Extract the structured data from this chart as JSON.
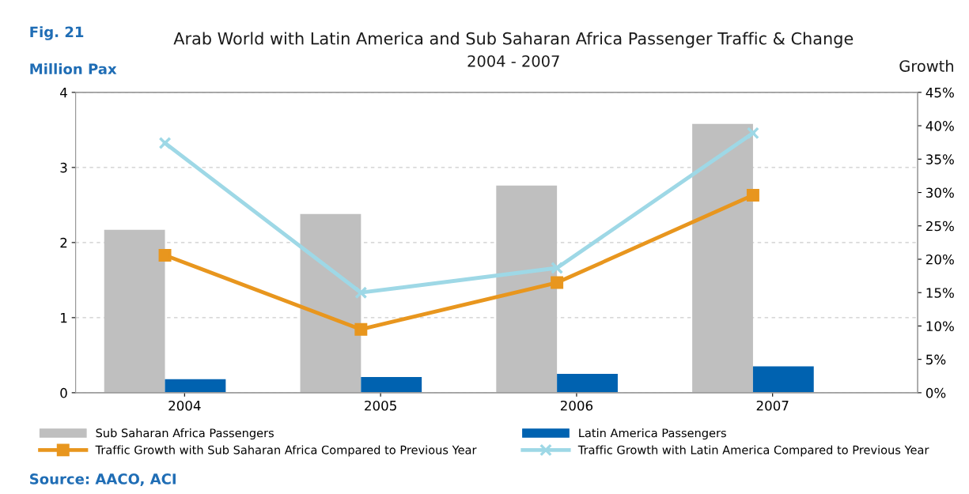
{
  "chart_data": {
    "type": "bar",
    "title": "Arab World with Latin America and Sub Saharan Africa Passenger Traffic & Change",
    "subtitle": "2004 - 2007",
    "ylabel": "Million Pax",
    "y2label": "Growth",
    "categories": [
      "2004",
      "2005",
      "2006",
      "2007"
    ],
    "series": [
      {
        "name": "Sub Saharan Africa Passengers",
        "color": "#bfbfbf",
        "values": [
          2.17,
          2.38,
          2.76,
          3.58
        ]
      },
      {
        "name": "Latin America Passengers",
        "color": "#0062b0",
        "values": [
          0.18,
          0.21,
          0.25,
          0.35
        ]
      },
      {
        "name": "Traffic Growth with Sub Saharan Africa Compared to Previous Year",
        "type": "line",
        "axis": "y2",
        "marker": "square",
        "color": "#e8961e",
        "values": [
          20.6,
          9.5,
          16.5,
          29.6
        ]
      },
      {
        "name": "Traffic Growth with Latin America Compared to Previous Year",
        "type": "line",
        "axis": "y2",
        "marker": "cross",
        "color": "#9ed8e6",
        "values": [
          37.4,
          15.0,
          18.7,
          38.9
        ]
      }
    ],
    "ylim": [
      0,
      4
    ],
    "yticks": [
      0,
      1,
      2,
      3,
      4
    ],
    "y2lim": [
      0,
      45
    ],
    "y2ticks": [
      {
        "value": 0,
        "label": "0%"
      },
      {
        "value": 5,
        "label": "5%"
      },
      {
        "value": 10,
        "label": "10%"
      },
      {
        "value": 15,
        "label": "15%"
      },
      {
        "value": 20,
        "label": "20%"
      },
      {
        "value": 25,
        "label": "25%"
      },
      {
        "value": 30,
        "label": "30%"
      },
      {
        "value": 35,
        "label": "35%"
      },
      {
        "value": 40,
        "label": "40%"
      },
      {
        "value": 45,
        "label": "45%"
      }
    ],
    "grid": "y",
    "legend": "bottom",
    "annotations": [
      "Fig. 21",
      "Source: AACO, ACI"
    ]
  }
}
